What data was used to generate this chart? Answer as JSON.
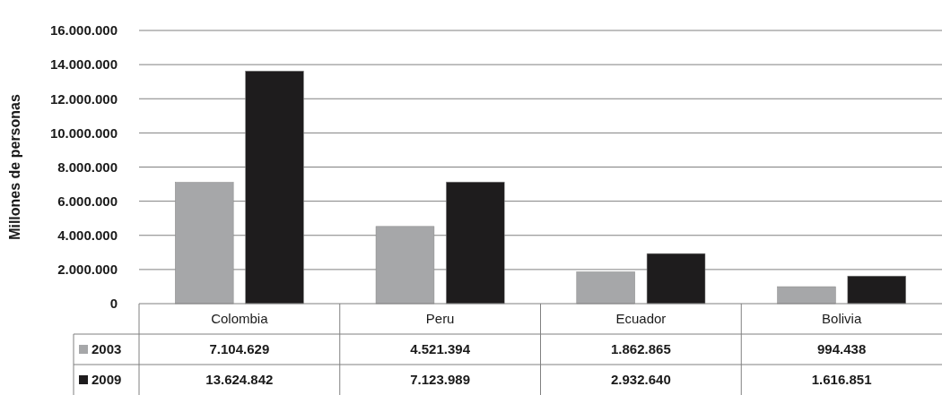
{
  "chart_data": {
    "type": "bar",
    "ylabel": "Millones de personas",
    "categories": [
      "Colombia",
      "Peru",
      "Ecuador",
      "Bolivia"
    ],
    "series": [
      {
        "name": "2003",
        "color": "#a6a7a9",
        "values": [
          7104629,
          4521394,
          1862865,
          994438
        ],
        "value_labels": [
          "7.104.629",
          "4.521.394",
          "1.862.865",
          "994.438"
        ]
      },
      {
        "name": "2009",
        "color": "#1e1c1d",
        "values": [
          13624842,
          7123989,
          2932640,
          1616851
        ],
        "value_labels": [
          "13.624.842",
          "7.123.989",
          "2.932.640",
          "1.616.851"
        ]
      }
    ],
    "ylim": [
      0,
      16000000
    ],
    "yticks": [
      0,
      {
        "value": 2000000,
        "label": "2.000.000"
      },
      {
        "value": 4000000,
        "label": "4.000.000"
      },
      {
        "value": 6000000,
        "label": "6.000.000"
      },
      {
        "value": 8000000,
        "label": "8.000.000"
      },
      {
        "value": 10000000,
        "label": "10.000.000"
      },
      {
        "value": 12000000,
        "label": "12.000.000"
      },
      {
        "value": 14000000,
        "label": "14.000.000"
      },
      {
        "value": 16000000,
        "label": "16.000.000"
      }
    ],
    "grid": "y",
    "legend": "bottom left"
  }
}
